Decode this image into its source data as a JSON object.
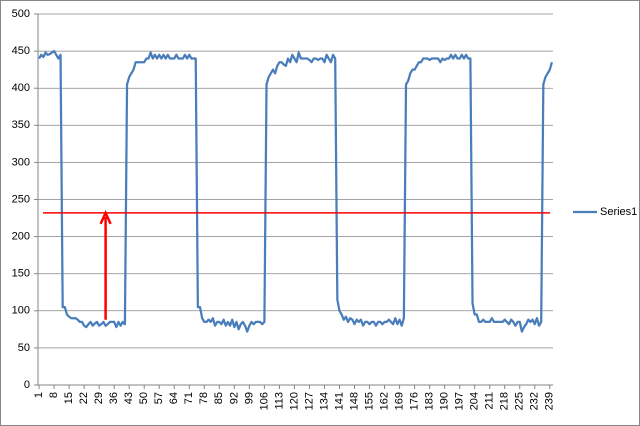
{
  "chart_data": {
    "type": "line",
    "categories": [
      1,
      null,
      null,
      null,
      null,
      null,
      null,
      8,
      null,
      null,
      null,
      null,
      null,
      null,
      15,
      null,
      null,
      null,
      null,
      null,
      null,
      22,
      null,
      null,
      null,
      null,
      null,
      null,
      29,
      null,
      null,
      null,
      null,
      null,
      null,
      36,
      null,
      null,
      null,
      null,
      null,
      null,
      43,
      null,
      null,
      null,
      null,
      null,
      null,
      50,
      null,
      null,
      null,
      null,
      null,
      null,
      57,
      null,
      null,
      null,
      null,
      null,
      null,
      64,
      null,
      null,
      null,
      null,
      null,
      null,
      71,
      null,
      null,
      null,
      null,
      null,
      null,
      78,
      null,
      null,
      null,
      null,
      null,
      null,
      85,
      null,
      null,
      null,
      null,
      null,
      null,
      92,
      null,
      null,
      null,
      null,
      null,
      null,
      99,
      null,
      null,
      null,
      null,
      null,
      null,
      106,
      null,
      null,
      null,
      null,
      null,
      null,
      113,
      null,
      null,
      null,
      null,
      null,
      null,
      120,
      null,
      null,
      null,
      null,
      null,
      null,
      127,
      null,
      null,
      null,
      null,
      null,
      null,
      134,
      null,
      null,
      null,
      null,
      null,
      null,
      141,
      null,
      null,
      null,
      null,
      null,
      null,
      148,
      null,
      null,
      null,
      null,
      null,
      null,
      155,
      null,
      null,
      null,
      null,
      null,
      null,
      162,
      null,
      null,
      null,
      null,
      null,
      null,
      169,
      null,
      null,
      null,
      null,
      null,
      null,
      176,
      null,
      null,
      null,
      null,
      null,
      null,
      183,
      null,
      null,
      null,
      null,
      null,
      null,
      190,
      null,
      null,
      null,
      null,
      null,
      null,
      197,
      null,
      null,
      null,
      null,
      null,
      null,
      204,
      null,
      null,
      null,
      null,
      null,
      null,
      211,
      null,
      null,
      null,
      null,
      null,
      null,
      218,
      null,
      null,
      null,
      null,
      null,
      null,
      225,
      null,
      null,
      null,
      null,
      null,
      null,
      232,
      null,
      null,
      null,
      null,
      null,
      null,
      239,
      null
    ],
    "series": [
      {
        "name": "Series1",
        "color": "#4a7ebb",
        "values": [
          440,
          445,
          442,
          448,
          445,
          446,
          448,
          450,
          445,
          440,
          445,
          105,
          105,
          95,
          92,
          90,
          90,
          90,
          88,
          85,
          85,
          80,
          78,
          82,
          85,
          80,
          83,
          85,
          80,
          82,
          85,
          80,
          82,
          85,
          85,
          85,
          78,
          85,
          80,
          85,
          82,
          405,
          415,
          420,
          425,
          435,
          435,
          435,
          435,
          435,
          440,
          440,
          448,
          440,
          445,
          440,
          445,
          440,
          445,
          440,
          445,
          440,
          440,
          440,
          445,
          440,
          440,
          440,
          445,
          440,
          445,
          440,
          440,
          440,
          105,
          105,
          90,
          85,
          85,
          88,
          85,
          90,
          80,
          85,
          85,
          82,
          88,
          80,
          85,
          80,
          88,
          78,
          85,
          75,
          82,
          85,
          80,
          72,
          80,
          85,
          82,
          85,
          85,
          85,
          82,
          85,
          405,
          415,
          420,
          425,
          420,
          430,
          435,
          435,
          432,
          430,
          440,
          435,
          445,
          440,
          435,
          448,
          440,
          440,
          440,
          440,
          438,
          435,
          440,
          440,
          438,
          440,
          440,
          435,
          445,
          440,
          435,
          445,
          440,
          115,
          100,
          95,
          88,
          92,
          85,
          90,
          88,
          82,
          88,
          85,
          88,
          80,
          85,
          85,
          82,
          85,
          85,
          80,
          85,
          85,
          82,
          85,
          85,
          88,
          85,
          82,
          90,
          82,
          88,
          80,
          90,
          405,
          410,
          420,
          425,
          425,
          430,
          435,
          435,
          440,
          440,
          440,
          438,
          440,
          440,
          440,
          440,
          435,
          440,
          438,
          440,
          440,
          445,
          440,
          445,
          440,
          440,
          445,
          440,
          445,
          440,
          440,
          110,
          95,
          95,
          85,
          85,
          88,
          85,
          85,
          85,
          90,
          85,
          85,
          85,
          85,
          85,
          88,
          85,
          82,
          88,
          85,
          80,
          85,
          85,
          72,
          78,
          82,
          88,
          85,
          88,
          82,
          90,
          80,
          85,
          405,
          415,
          420,
          425,
          435
        ]
      }
    ],
    "ylim": [
      0,
      500
    ],
    "yticks": [
      0,
      50,
      100,
      150,
      200,
      250,
      300,
      350,
      400,
      450,
      500
    ],
    "grid": true,
    "legend": "right",
    "reference_line": {
      "value": 232,
      "color": "#ff0000"
    },
    "arrow": {
      "x": 32,
      "from": 88,
      "to": 232,
      "color": "#ff0000"
    }
  }
}
